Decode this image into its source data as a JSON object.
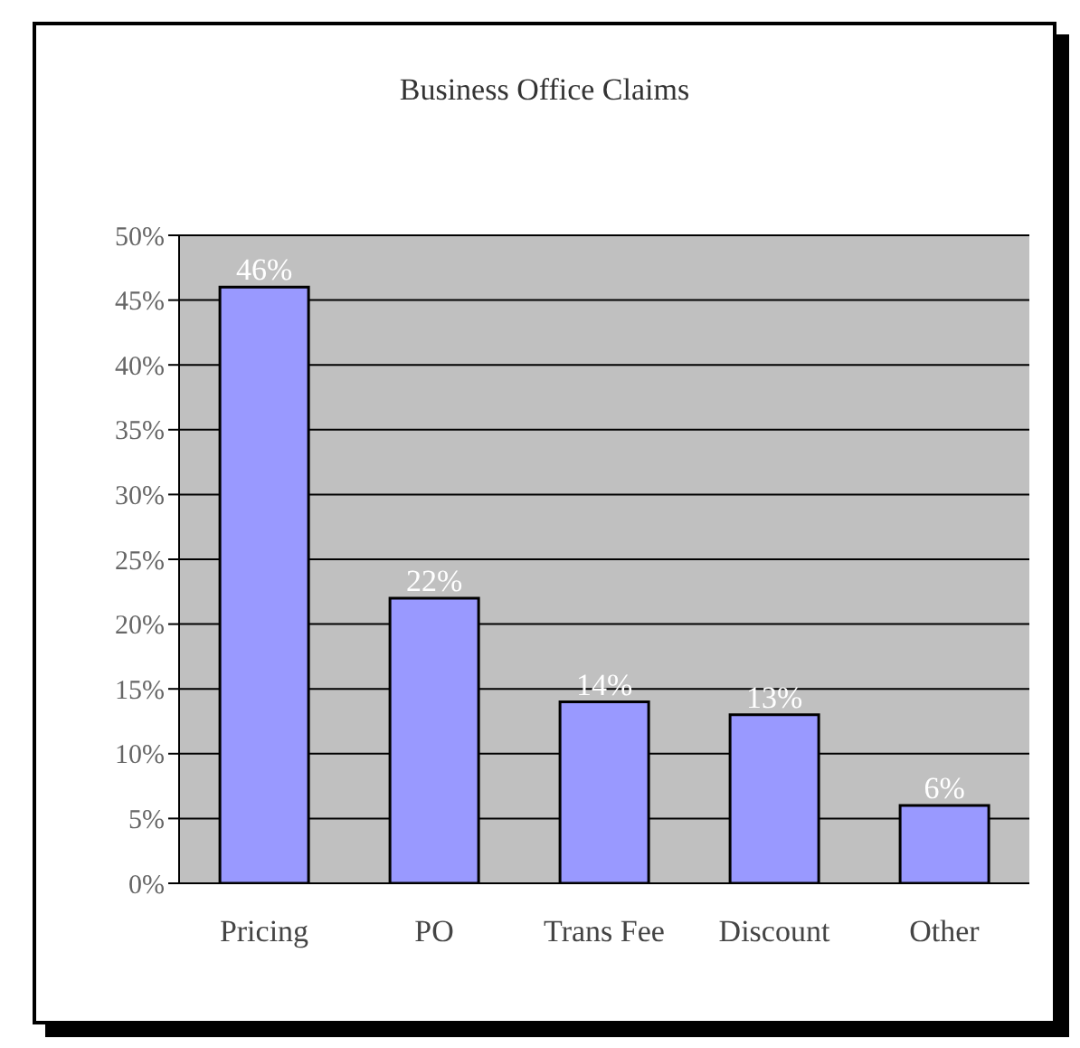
{
  "chart_data": {
    "type": "bar",
    "title": "Business Office Claims",
    "categories": [
      "Pricing",
      "PO",
      "Trans Fee",
      "Discount",
      "Other"
    ],
    "values": [
      46,
      22,
      14,
      13,
      6
    ],
    "value_labels": [
      "46%",
      "22%",
      "14%",
      "13%",
      "6%"
    ],
    "color": "#9999ff",
    "ylim": [
      0,
      50
    ],
    "yticks": [
      {
        "value": 0,
        "label": "0%"
      },
      {
        "value": 5,
        "label": "5%"
      },
      {
        "value": 10,
        "label": "10%"
      },
      {
        "value": 15,
        "label": "15%"
      },
      {
        "value": 20,
        "label": "20%"
      },
      {
        "value": 25,
        "label": "25%"
      },
      {
        "value": 30,
        "label": "30%"
      },
      {
        "value": 35,
        "label": "35%"
      },
      {
        "value": 40,
        "label": "40%"
      },
      {
        "value": 45,
        "label": "45%"
      },
      {
        "value": 50,
        "label": "50%"
      }
    ],
    "grid": "y"
  }
}
